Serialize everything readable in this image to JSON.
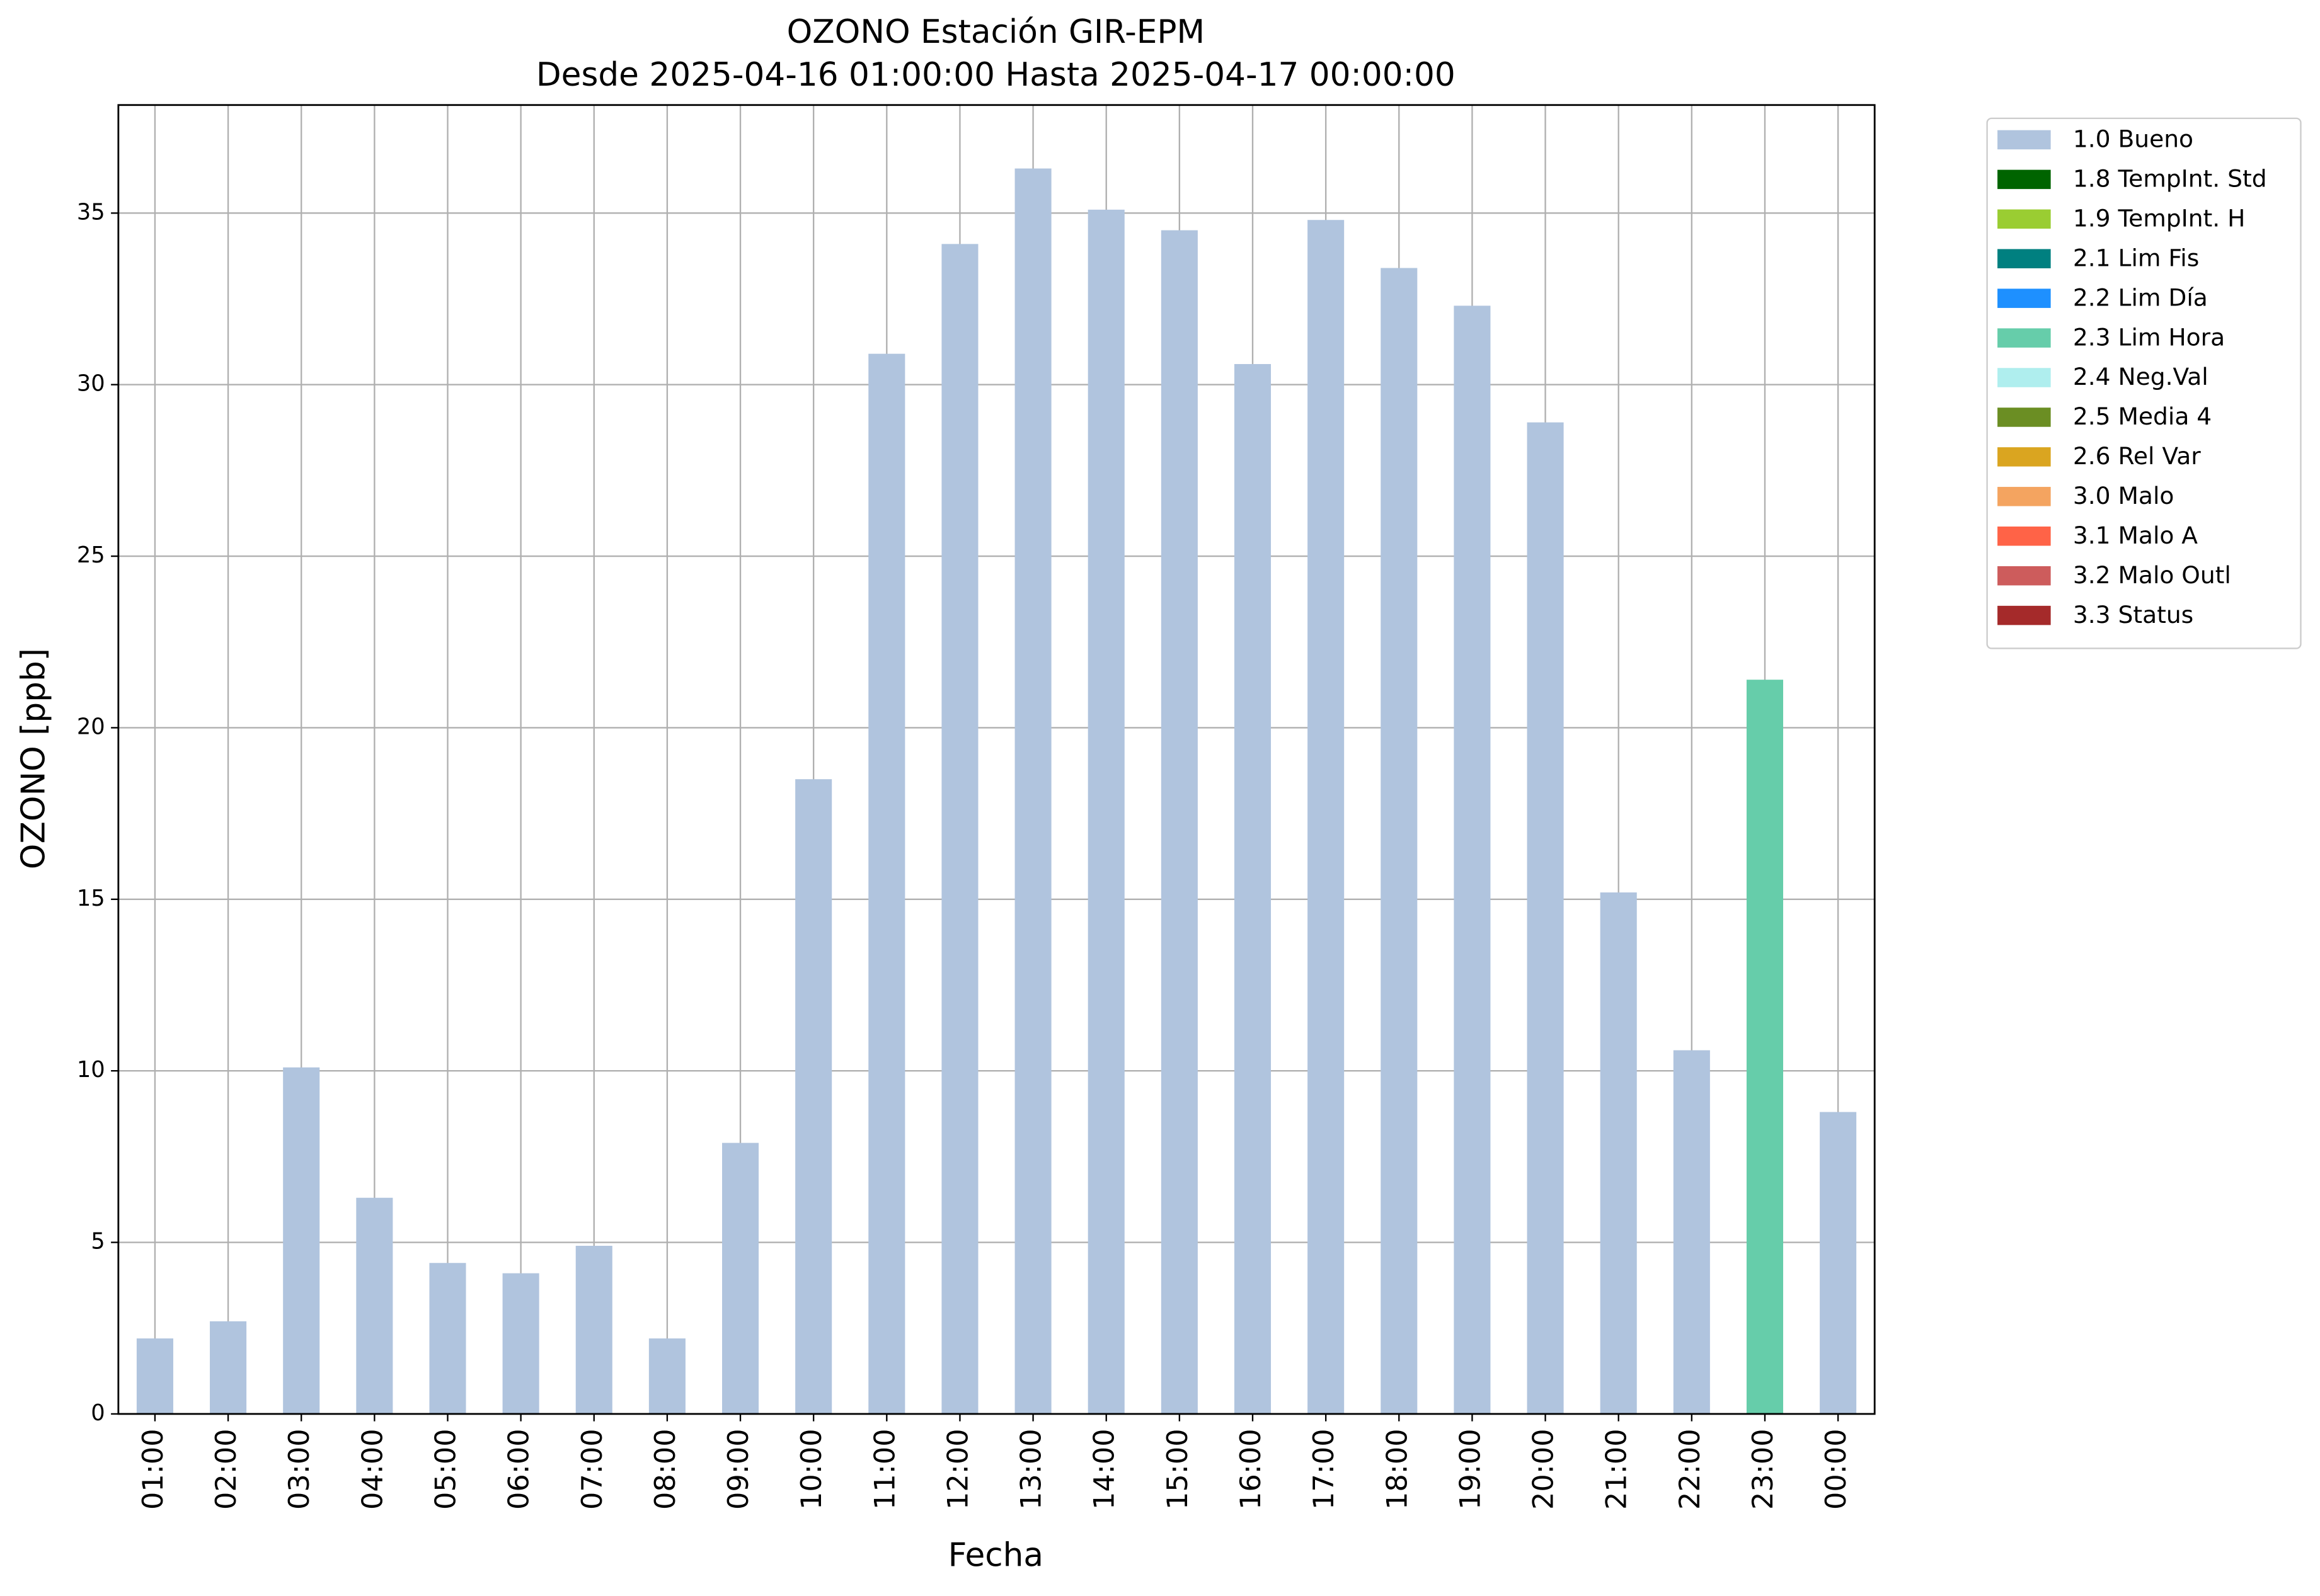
{
  "chart_data": {
    "type": "bar",
    "stacked": true,
    "title": "OZONO Estación GIR-EPM",
    "subtitle": "Desde 2025-04-16 01:00:00 Hasta 2025-04-17 00:00:00",
    "x_label": "Fecha",
    "y_label": "OZONO [ppb]",
    "categories": [
      "01:00",
      "02:00",
      "03:00",
      "04:00",
      "05:00",
      "06:00",
      "07:00",
      "08:00",
      "09:00",
      "10:00",
      "11:00",
      "12:00",
      "13:00",
      "14:00",
      "15:00",
      "16:00",
      "17:00",
      "18:00",
      "19:00",
      "20:00",
      "21:00",
      "22:00",
      "23:00",
      "00:00"
    ],
    "series": [
      {
        "name": "1.0 Bueno",
        "color": "#b0c4de",
        "values": [
          2.2,
          2.7,
          10.1,
          6.3,
          4.4,
          4.1,
          4.9,
          2.2,
          7.9,
          18.5,
          30.9,
          34.1,
          36.3,
          35.1,
          34.5,
          30.6,
          34.8,
          33.4,
          32.3,
          28.9,
          15.2,
          10.6,
          null,
          8.8
        ]
      },
      {
        "name": "1.8 TempInt. Std",
        "color": "#006400",
        "values": [
          null,
          null,
          null,
          null,
          null,
          null,
          null,
          null,
          null,
          null,
          null,
          null,
          null,
          null,
          null,
          null,
          null,
          null,
          null,
          null,
          null,
          null,
          null,
          null
        ]
      },
      {
        "name": "1.9 TempInt. H",
        "color": "#9acd32",
        "values": [
          null,
          null,
          null,
          null,
          null,
          null,
          null,
          null,
          null,
          null,
          null,
          null,
          null,
          null,
          null,
          null,
          null,
          null,
          null,
          null,
          null,
          null,
          null,
          null
        ]
      },
      {
        "name": "2.1 Lim Fis",
        "color": "#008080",
        "values": [
          null,
          null,
          null,
          null,
          null,
          null,
          null,
          null,
          null,
          null,
          null,
          null,
          null,
          null,
          null,
          null,
          null,
          null,
          null,
          null,
          null,
          null,
          null,
          null
        ]
      },
      {
        "name": "2.2 Lim Día",
        "color": "#1e90ff",
        "values": [
          null,
          null,
          null,
          null,
          null,
          null,
          null,
          null,
          null,
          null,
          null,
          null,
          null,
          null,
          null,
          null,
          null,
          null,
          null,
          null,
          null,
          null,
          null,
          null
        ]
      },
      {
        "name": "2.3 Lim Hora",
        "color": "#66cdaa",
        "values": [
          null,
          null,
          null,
          null,
          null,
          null,
          null,
          null,
          null,
          null,
          null,
          null,
          null,
          null,
          null,
          null,
          null,
          null,
          null,
          null,
          null,
          null,
          21.4,
          null
        ]
      },
      {
        "name": "2.4 Neg.Val",
        "color": "#afeeee",
        "values": [
          null,
          null,
          null,
          null,
          null,
          null,
          null,
          null,
          null,
          null,
          null,
          null,
          null,
          null,
          null,
          null,
          null,
          null,
          null,
          null,
          null,
          null,
          null,
          null
        ]
      },
      {
        "name": "2.5 Media 4",
        "color": "#6b8e23",
        "values": [
          null,
          null,
          null,
          null,
          null,
          null,
          null,
          null,
          null,
          null,
          null,
          null,
          null,
          null,
          null,
          null,
          null,
          null,
          null,
          null,
          null,
          null,
          null,
          null
        ]
      },
      {
        "name": "2.6 Rel Var",
        "color": "#daa520",
        "values": [
          null,
          null,
          null,
          null,
          null,
          null,
          null,
          null,
          null,
          null,
          null,
          null,
          null,
          null,
          null,
          null,
          null,
          null,
          null,
          null,
          null,
          null,
          null,
          null
        ]
      },
      {
        "name": "3.0 Malo",
        "color": "#f4a460",
        "values": [
          null,
          null,
          null,
          null,
          null,
          null,
          null,
          null,
          null,
          null,
          null,
          null,
          null,
          null,
          null,
          null,
          null,
          null,
          null,
          null,
          null,
          null,
          null,
          null
        ]
      },
      {
        "name": "3.1 Malo A",
        "color": "#ff6347",
        "values": [
          null,
          null,
          null,
          null,
          null,
          null,
          null,
          null,
          null,
          null,
          null,
          null,
          null,
          null,
          null,
          null,
          null,
          null,
          null,
          null,
          null,
          null,
          null,
          null
        ]
      },
      {
        "name": "3.2 Malo Outl",
        "color": "#cd5c5c",
        "values": [
          null,
          null,
          null,
          null,
          null,
          null,
          null,
          null,
          null,
          null,
          null,
          null,
          null,
          null,
          null,
          null,
          null,
          null,
          null,
          null,
          null,
          null,
          null,
          null
        ]
      },
      {
        "name": "3.3 Status",
        "color": "#a52a2a",
        "values": [
          null,
          null,
          null,
          null,
          null,
          null,
          null,
          null,
          null,
          null,
          null,
          null,
          null,
          null,
          null,
          null,
          null,
          null,
          null,
          null,
          null,
          null,
          null,
          null
        ]
      }
    ],
    "ylim": [
      0,
      38.15
    ],
    "yticks": [
      0,
      5,
      10,
      15,
      20,
      25,
      30,
      35
    ],
    "grid": true,
    "legend": "outside upper right"
  }
}
